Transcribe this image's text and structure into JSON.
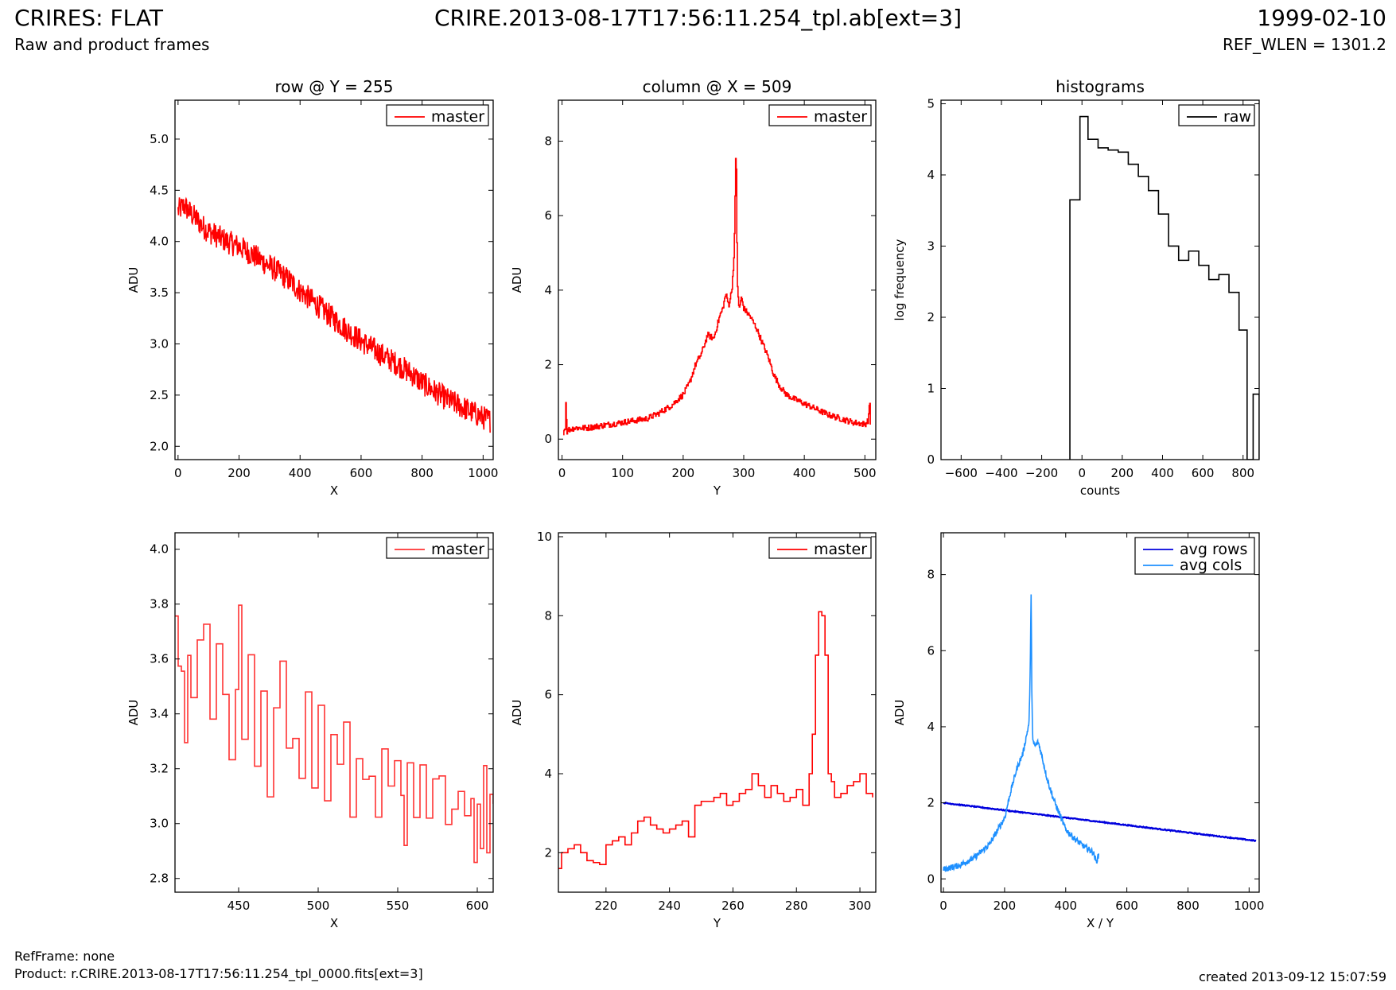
{
  "header": {
    "title_left": "CRIRES: FLAT",
    "subtitle_left": "Raw and product frames",
    "title_center": "CRIRE.2013-08-17T17:56:11.254_tpl.ab[ext=3]",
    "date_right": "1999-02-10",
    "subtitle_right": "REF_WLEN = 1301.2"
  },
  "footer": {
    "refframe": "RefFrame: none",
    "product": "Product: r.CRIRE.2013-08-17T17:56:11.254_tpl_0000.fits[ext=3]",
    "created": "created 2013-09-12 15:07:59"
  },
  "colors": {
    "red": "#ff0000",
    "blue": "#0000dd",
    "lightblue": "#1e90ff",
    "black": "#000000"
  },
  "chart_data": [
    {
      "id": "row_full",
      "type": "line",
      "title": "row @ Y = 255",
      "xlabel": "X",
      "ylabel": "ADU",
      "xlim": [
        -10,
        1033
      ],
      "ylim": [
        1.87,
        5.38
      ],
      "xticks": [
        0,
        200,
        400,
        600,
        800,
        1000
      ],
      "yticks": [
        2.0,
        2.5,
        3.0,
        3.5,
        4.0,
        4.5,
        5.0
      ],
      "ytick_labels": [
        "2.0",
        "2.5",
        "3.0",
        "3.5",
        "4.0",
        "4.5",
        "5.0"
      ],
      "legend": "top-right",
      "series": [
        {
          "name": "master",
          "color": "#ff0000",
          "step": false,
          "x": [
            0,
            20,
            40,
            60,
            80,
            100,
            130,
            160,
            200,
            240,
            280,
            320,
            360,
            400,
            440,
            480,
            520,
            560,
            600,
            640,
            680,
            720,
            760,
            800,
            840,
            880,
            920,
            960,
            1000,
            1023
          ],
          "y": [
            4.3,
            4.35,
            4.28,
            4.22,
            4.15,
            4.1,
            4.05,
            4.0,
            3.95,
            3.88,
            3.8,
            3.72,
            3.63,
            3.52,
            3.42,
            3.32,
            3.22,
            3.12,
            3.03,
            2.95,
            2.87,
            2.8,
            2.72,
            2.62,
            2.54,
            2.46,
            2.4,
            2.34,
            2.28,
            2.25
          ],
          "noise": 0.12
        }
      ]
    },
    {
      "id": "col_full",
      "type": "line",
      "title": "column @ X = 509",
      "xlabel": "Y",
      "ylabel": "ADU",
      "xlim": [
        -6,
        518
      ],
      "ylim": [
        -0.55,
        9.1
      ],
      "xticks": [
        0,
        100,
        200,
        300,
        400,
        500
      ],
      "yticks": [
        0,
        2,
        4,
        6,
        8
      ],
      "ytick_labels": [
        "0",
        "2",
        "4",
        "6",
        "8"
      ],
      "legend": "top-right",
      "series": [
        {
          "name": "master",
          "color": "#ff0000",
          "step": true,
          "x": [
            2,
            5,
            6,
            8,
            10,
            20,
            40,
            60,
            80,
            100,
            120,
            140,
            160,
            180,
            200,
            210,
            220,
            230,
            240,
            250,
            260,
            265,
            270,
            275,
            280,
            284,
            286,
            287,
            288,
            289,
            290,
            292,
            296,
            300,
            305,
            310,
            320,
            330,
            340,
            350,
            360,
            370,
            380,
            400,
            420,
            440,
            460,
            480,
            500,
            505,
            508,
            509
          ],
          "y": [
            0.2,
            0.3,
            1.0,
            0.2,
            0.25,
            0.3,
            0.3,
            0.35,
            0.4,
            0.45,
            0.5,
            0.55,
            0.7,
            0.9,
            1.2,
            1.5,
            2.0,
            2.3,
            2.8,
            2.7,
            3.3,
            3.5,
            3.9,
            3.6,
            4.0,
            5.0,
            7.0,
            8.1,
            6.5,
            4.2,
            3.9,
            3.5,
            3.8,
            3.5,
            3.4,
            3.3,
            3.0,
            2.6,
            2.2,
            1.7,
            1.4,
            1.2,
            1.1,
            0.95,
            0.8,
            0.65,
            0.55,
            0.45,
            0.4,
            0.5,
            1.0,
            0.4
          ],
          "noise": 0.08
        }
      ]
    },
    {
      "id": "hist",
      "type": "bar",
      "title": "histograms",
      "xlabel": "counts",
      "ylabel": "log frequency",
      "xlim": [
        -700,
        880
      ],
      "ylim": [
        0,
        5.05
      ],
      "xticks": [
        -600,
        -400,
        -200,
        0,
        200,
        400,
        600,
        800
      ],
      "xtick_labels": [
        "−600",
        "−400",
        "−200",
        "0",
        "200",
        "400",
        "600",
        "800"
      ],
      "yticks": [
        0,
        1,
        2,
        3,
        4,
        5
      ],
      "ytick_labels": [
        "0",
        "1",
        "2",
        "3",
        "4",
        "5"
      ],
      "legend": "top-right",
      "series": [
        {
          "name": "raw",
          "color": "#000000",
          "edges": [
            -60,
            -10,
            30,
            80,
            130,
            180,
            230,
            280,
            330,
            380,
            430,
            480,
            530,
            580,
            630,
            680,
            730,
            780,
            820,
            850,
            880
          ],
          "values": [
            3.65,
            4.82,
            4.5,
            4.38,
            4.35,
            4.32,
            4.15,
            3.98,
            3.78,
            3.45,
            3.0,
            2.8,
            2.93,
            2.73,
            2.53,
            2.6,
            2.35,
            1.82,
            0,
            0.92
          ]
        }
      ]
    },
    {
      "id": "row_zoom",
      "type": "line",
      "title": "",
      "xlabel": "X",
      "ylabel": "ADU",
      "xlim": [
        410,
        610
      ],
      "ylim": [
        2.75,
        4.06
      ],
      "xticks": [
        450,
        500,
        550,
        600
      ],
      "yticks": [
        2.8,
        3.0,
        3.2,
        3.4,
        3.6,
        3.8,
        4.0
      ],
      "ytick_labels": [
        "2.8",
        "3.0",
        "3.2",
        "3.4",
        "3.6",
        "3.8",
        "4.0"
      ],
      "legend": "top-right",
      "series": [
        {
          "name": "master",
          "color": "#ff3333",
          "step": true,
          "x": [
            410,
            412,
            414,
            416,
            418,
            420,
            424,
            428,
            432,
            436,
            440,
            444,
            448,
            450,
            452,
            456,
            460,
            464,
            468,
            472,
            476,
            480,
            484,
            488,
            492,
            496,
            500,
            504,
            508,
            512,
            516,
            520,
            524,
            528,
            532,
            536,
            540,
            544,
            548,
            552,
            554,
            556,
            560,
            564,
            568,
            572,
            576,
            580,
            584,
            588,
            592,
            596,
            598,
            600,
            602,
            604,
            606,
            608,
            610
          ],
          "y": [
            3.75,
            3.6,
            3.53,
            3.31,
            3.6,
            3.45,
            3.65,
            3.7,
            3.4,
            3.66,
            3.47,
            3.22,
            3.5,
            3.78,
            3.3,
            3.6,
            3.21,
            3.5,
            3.1,
            3.45,
            3.57,
            3.25,
            3.3,
            3.18,
            3.46,
            3.15,
            3.45,
            3.08,
            3.3,
            3.2,
            3.35,
            3.03,
            3.22,
            3.18,
            3.2,
            3.05,
            3.3,
            3.12,
            3.25,
            3.1,
            2.94,
            3.25,
            3.05,
            3.2,
            3.0,
            3.18,
            3.15,
            2.98,
            3.08,
            3.1,
            3.05,
            3.12,
            2.85,
            3.1,
            2.9,
            3.22,
            2.92,
            3.08,
            3.1
          ],
          "noise": 0.03
        }
      ]
    },
    {
      "id": "col_zoom",
      "type": "line",
      "title": "",
      "xlabel": "Y",
      "ylabel": "ADU",
      "xlim": [
        205,
        305
      ],
      "ylim": [
        1.0,
        10.1
      ],
      "xticks": [
        220,
        240,
        260,
        280,
        300
      ],
      "yticks": [
        2,
        4,
        6,
        8,
        10
      ],
      "ytick_labels": [
        "2",
        "4",
        "6",
        "8",
        "10"
      ],
      "legend": "top-right",
      "series": [
        {
          "name": "master",
          "color": "#ff0000",
          "step": true,
          "x": [
            205,
            206,
            208,
            210,
            212,
            214,
            216,
            218,
            220,
            222,
            224,
            226,
            228,
            230,
            232,
            234,
            236,
            238,
            240,
            242,
            244,
            246,
            248,
            250,
            252,
            254,
            256,
            258,
            260,
            262,
            264,
            266,
            268,
            270,
            272,
            274,
            276,
            278,
            280,
            282,
            284,
            285,
            286,
            287,
            288,
            289,
            290,
            291,
            292,
            294,
            296,
            298,
            300,
            302,
            304
          ],
          "y": [
            1.6,
            2.0,
            2.1,
            2.2,
            2.0,
            1.8,
            1.75,
            1.7,
            2.2,
            2.3,
            2.4,
            2.2,
            2.5,
            2.8,
            2.9,
            2.7,
            2.6,
            2.5,
            2.6,
            2.7,
            2.8,
            2.4,
            3.2,
            3.3,
            3.3,
            3.4,
            3.5,
            3.2,
            3.3,
            3.5,
            3.6,
            4.0,
            3.7,
            3.4,
            3.7,
            3.5,
            3.3,
            3.4,
            3.6,
            3.2,
            4.0,
            5.0,
            7.0,
            8.1,
            8.0,
            7.0,
            4.0,
            3.8,
            3.4,
            3.5,
            3.7,
            3.8,
            4.0,
            3.5,
            3.4
          ],
          "noise": 0.0
        }
      ]
    },
    {
      "id": "avg",
      "type": "line",
      "title": "",
      "xlabel": "X / Y",
      "ylabel": "ADU",
      "xlim": [
        -8,
        1033
      ],
      "ylim": [
        -0.35,
        9.1
      ],
      "xticks": [
        0,
        200,
        400,
        600,
        800,
        1000
      ],
      "yticks": [
        0,
        2,
        4,
        6,
        8
      ],
      "ytick_labels": [
        "0",
        "2",
        "4",
        "6",
        "8"
      ],
      "legend": "top-right",
      "series": [
        {
          "name": "avg rows",
          "color": "#0000dd",
          "step": false,
          "x": [
            0,
            1023
          ],
          "y": [
            2.0,
            1.0
          ],
          "noise": 0.012
        },
        {
          "name": "avg cols",
          "color": "#1e90ff",
          "step": false,
          "x": [
            0,
            50,
            100,
            150,
            200,
            220,
            240,
            260,
            270,
            280,
            284,
            287,
            289,
            292,
            300,
            310,
            320,
            340,
            360,
            380,
            400,
            430,
            460,
            490,
            500,
            509
          ],
          "y": [
            0.25,
            0.35,
            0.55,
            0.9,
            1.6,
            2.3,
            2.9,
            3.3,
            3.7,
            4.1,
            5.5,
            7.7,
            5.0,
            3.6,
            3.5,
            3.6,
            3.3,
            2.6,
            2.1,
            1.7,
            1.3,
            1.05,
            0.85,
            0.7,
            0.45,
            0.65
          ],
          "noise": 0.08
        }
      ]
    }
  ]
}
